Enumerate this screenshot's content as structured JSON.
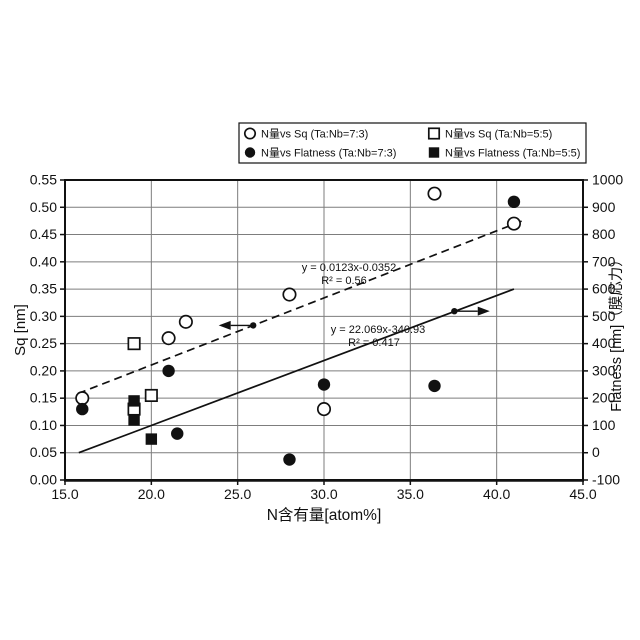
{
  "figure": {
    "background": "#ffffff",
    "ink_color": "#111111",
    "grid_color": "#7d7d7d"
  },
  "chart_data": {
    "type": "scatter",
    "title": "",
    "xlabel": "N含有量[atom%]",
    "ylabel_left": "Sq [nm]",
    "ylabel_right": "Flatness [nm]（膜応力）",
    "xlim": [
      15,
      45
    ],
    "ylim_left": [
      0,
      0.55
    ],
    "ylim_right": [
      -100,
      1000
    ],
    "grid": true,
    "legend_position": "top",
    "x_tick_values": [
      15,
      20,
      25,
      30,
      35,
      40,
      45
    ],
    "x_tick_labels": [
      "15.0",
      "20.0",
      "25.0",
      "30.0",
      "35.0",
      "40.0",
      "45.0"
    ],
    "left_tick_values": [
      0,
      0.05,
      0.1,
      0.15,
      0.2,
      0.25,
      0.3,
      0.35,
      0.4,
      0.45,
      0.5,
      0.55
    ],
    "left_tick_labels": [
      "0.00",
      "0.05",
      "0.10",
      "0.15",
      "0.20",
      "0.25",
      "0.30",
      "0.35",
      "0.40",
      "0.45",
      "0.50",
      "0.55"
    ],
    "right_tick_values": [
      -100,
      0,
      100,
      200,
      300,
      400,
      500,
      600,
      700,
      800,
      900,
      1000
    ],
    "right_tick_labels": [
      "-100",
      "0",
      "100",
      "200",
      "300",
      "400",
      "500",
      "600",
      "700",
      "800",
      "900",
      "1000"
    ],
    "legend": [
      {
        "label": "N量vs Sq (Ta:Nb=7:3)",
        "marker": "circle-open"
      },
      {
        "label": "N量vs Sq (Ta:Nb=5:5)",
        "marker": "square-open"
      },
      {
        "label": "N量vs Flatness (Ta:Nb=7:3)",
        "marker": "circle-filled"
      },
      {
        "label": "N量vs Flatness (Ta:Nb=5:5)",
        "marker": "square-filled"
      }
    ],
    "series": [
      {
        "name": "N量vs Sq (Ta:Nb=7:3)",
        "marker": "circle-open",
        "axis": "left",
        "points": [
          [
            16,
            0.15
          ],
          [
            21,
            0.26
          ],
          [
            22,
            0.29
          ],
          [
            28,
            0.34
          ],
          [
            30,
            0.13
          ],
          [
            36.4,
            0.525
          ],
          [
            41,
            0.47
          ]
        ]
      },
      {
        "name": "N量vs Sq (Ta:Nb=5:5)",
        "marker": "square-open",
        "axis": "left",
        "points": [
          [
            19,
            0.25
          ],
          [
            19,
            0.13
          ],
          [
            20,
            0.155
          ]
        ]
      },
      {
        "name": "N量vs Flatness (Ta:Nb=7:3)",
        "marker": "circle-filled",
        "axis": "right",
        "points": [
          [
            16,
            160
          ],
          [
            21,
            300
          ],
          [
            21.5,
            70
          ],
          [
            28,
            -25
          ],
          [
            30,
            250
          ],
          [
            36.4,
            245
          ],
          [
            41,
            920
          ]
        ]
      },
      {
        "name": "N量vs Flatness (Ta:Nb=5:5)",
        "marker": "square-filled",
        "axis": "right",
        "points": [
          [
            19,
            190
          ],
          [
            19,
            120
          ],
          [
            20,
            50
          ]
        ]
      }
    ],
    "trendlines": [
      {
        "style": "dashed",
        "axis": "left",
        "equation": "y = 0.0123x-0.0352",
        "r2": "R² = 0.56",
        "drawn": [
          [
            15.75,
            0.1585
          ],
          [
            41.6,
            0.4765
          ]
        ]
      },
      {
        "style": "solid",
        "axis": "right",
        "equation": "y = 22.069x-340.93",
        "r2": "R² = 0.417",
        "drawn": [
          [
            15.8,
            0
          ],
          [
            41.0,
            600
          ]
        ]
      }
    ],
    "annotations": {
      "arrows": [
        {
          "meaning": "dashed-line-uses-left-axis",
          "axis": "left",
          "anchor": [
            25.9,
            0.2834
          ],
          "tip_x": 23.9,
          "direction": "left"
        },
        {
          "meaning": "solid-line-uses-right-axis",
          "axis": "right",
          "anchor": [
            37.55,
            519
          ],
          "tip_x": 39.6,
          "direction": "right"
        }
      ]
    }
  }
}
